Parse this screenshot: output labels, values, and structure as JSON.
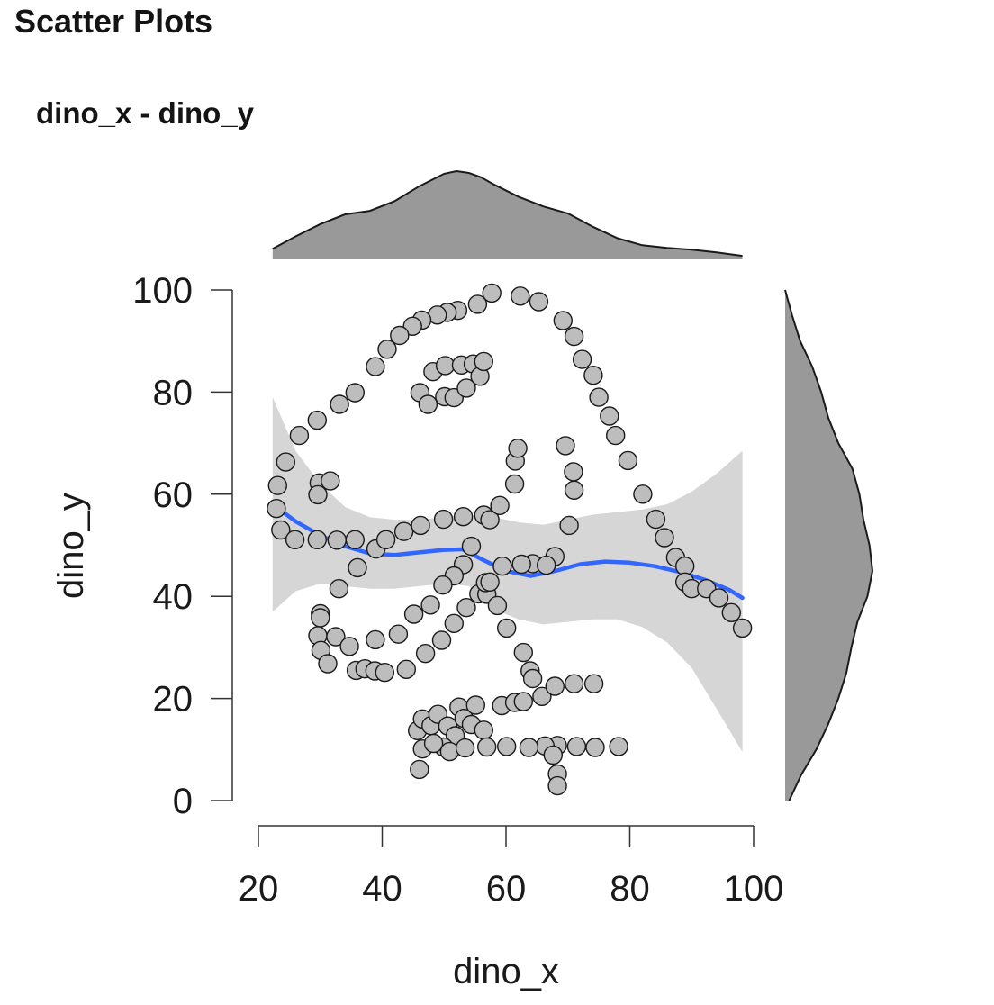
{
  "page": {
    "heading": "Scatter Plots",
    "plot_title": "dino_x - dino_y"
  },
  "chart_data": {
    "type": "scatter",
    "title": "dino_x - dino_y",
    "xlabel": "dino_x",
    "ylabel": "dino_y",
    "xlim": [
      20,
      100
    ],
    "ylim": [
      0,
      100
    ],
    "xticks": [
      "20",
      "40",
      "60",
      "80",
      "100"
    ],
    "yticks": [
      "0",
      "20",
      "40",
      "60",
      "80",
      "100"
    ],
    "grid": false,
    "legend": "none",
    "colors": {
      "point_fill": "#bdbdbd",
      "point_stroke": "#1a1a1a",
      "smooth_line": "#3366ff",
      "confidence_band": "#d6d6d6",
      "density_fill": "#999999",
      "density_stroke": "#1a1a1a"
    },
    "points": [
      [
        55.4,
        97.2
      ],
      [
        57.7,
        99.4
      ],
      [
        62.3,
        98.8
      ],
      [
        65.3,
        97.7
      ],
      [
        69.2,
        94.0
      ],
      [
        71.0,
        90.9
      ],
      [
        72.3,
        86.4
      ],
      [
        74.1,
        83.3
      ],
      [
        75.0,
        79.0
      ],
      [
        76.7,
        75.3
      ],
      [
        77.7,
        71.5
      ],
      [
        79.7,
        66.6
      ],
      [
        82.1,
        60.0
      ],
      [
        84.2,
        55.1
      ],
      [
        85.6,
        51.5
      ],
      [
        87.4,
        47.6
      ],
      [
        88.9,
        45.9
      ],
      [
        88.9,
        42.8
      ],
      [
        90.0,
        41.5
      ],
      [
        92.4,
        41.5
      ],
      [
        94.4,
        39.7
      ],
      [
        96.4,
        36.8
      ],
      [
        98.2,
        33.8
      ],
      [
        52.2,
        96.0
      ],
      [
        50.5,
        95.6
      ],
      [
        48.9,
        95.1
      ],
      [
        46.4,
        94.1
      ],
      [
        44.9,
        92.9
      ],
      [
        42.8,
        91.1
      ],
      [
        40.8,
        88.4
      ],
      [
        38.9,
        85.0
      ],
      [
        35.6,
        79.9
      ],
      [
        33.1,
        77.6
      ],
      [
        29.5,
        74.5
      ],
      [
        26.6,
        71.5
      ],
      [
        24.4,
        66.3
      ],
      [
        23.1,
        61.7
      ],
      [
        22.9,
        57.2
      ],
      [
        23.6,
        53.0
      ],
      [
        25.9,
        51.1
      ],
      [
        29.5,
        51.1
      ],
      [
        32.7,
        51.0
      ],
      [
        35.6,
        51.1
      ],
      [
        39.0,
        49.3
      ],
      [
        40.6,
        51.1
      ],
      [
        43.5,
        52.7
      ],
      [
        46.2,
        53.9
      ],
      [
        49.9,
        55.1
      ],
      [
        53.1,
        55.6
      ],
      [
        56.4,
        55.9
      ],
      [
        57.4,
        55.0
      ],
      [
        59.0,
        57.8
      ],
      [
        61.4,
        62.0
      ],
      [
        61.5,
        66.5
      ],
      [
        61.9,
        69.0
      ],
      [
        69.6,
        69.5
      ],
      [
        70.9,
        64.4
      ],
      [
        71.0,
        60.8
      ],
      [
        70.2,
        53.9
      ],
      [
        46.1,
        79.9
      ],
      [
        47.4,
        77.6
      ],
      [
        48.2,
        84.0
      ],
      [
        50.2,
        85.2
      ],
      [
        50.1,
        79.1
      ],
      [
        51.6,
        78.9
      ],
      [
        52.8,
        85.3
      ],
      [
        53.6,
        80.8
      ],
      [
        54.7,
        85.5
      ],
      [
        55.8,
        83.1
      ],
      [
        56.4,
        86.0
      ],
      [
        29.8,
        62.2
      ],
      [
        31.6,
        62.6
      ],
      [
        29.6,
        59.9
      ],
      [
        36.0,
        45.6
      ],
      [
        33.0,
        41.5
      ],
      [
        30.0,
        36.6
      ],
      [
        30.0,
        35.8
      ],
      [
        29.6,
        32.3
      ],
      [
        30.1,
        29.4
      ],
      [
        31.2,
        26.8
      ],
      [
        32.5,
        32.1
      ],
      [
        34.7,
        30.2
      ],
      [
        35.8,
        25.5
      ],
      [
        37.2,
        25.8
      ],
      [
        38.9,
        31.5
      ],
      [
        38.8,
        25.4
      ],
      [
        40.4,
        25.1
      ],
      [
        43.9,
        25.7
      ],
      [
        42.6,
        32.6
      ],
      [
        45.1,
        36.5
      ],
      [
        47.8,
        38.3
      ],
      [
        47.0,
        28.8
      ],
      [
        49.6,
        31.4
      ],
      [
        51.6,
        34.7
      ],
      [
        53.6,
        37.8
      ],
      [
        55.6,
        40.5
      ],
      [
        56.9,
        40.4
      ],
      [
        56.7,
        42.7
      ],
      [
        58.6,
        38.2
      ],
      [
        60.1,
        33.8
      ],
      [
        62.8,
        29.0
      ],
      [
        63.9,
        25.4
      ],
      [
        64.3,
        23.9
      ],
      [
        64.3,
        46.4
      ],
      [
        67.9,
        47.8
      ],
      [
        66.5,
        46.1
      ],
      [
        62.5,
        46.3
      ],
      [
        59.4,
        45.9
      ],
      [
        57.4,
        42.8
      ],
      [
        53.1,
        46.2
      ],
      [
        51.6,
        44.0
      ],
      [
        49.8,
        42.2
      ],
      [
        54.4,
        49.8
      ],
      [
        45.7,
        13.7
      ],
      [
        46.5,
        16.0
      ],
      [
        47.9,
        14.7
      ],
      [
        49.0,
        16.9
      ],
      [
        50.6,
        14.6
      ],
      [
        51.8,
        12.7
      ],
      [
        52.4,
        18.3
      ],
      [
        53.2,
        16.1
      ],
      [
        54.4,
        14.9
      ],
      [
        55.1,
        18.7
      ],
      [
        56.4,
        13.8
      ],
      [
        49.9,
        10.5
      ],
      [
        50.9,
        9.6
      ],
      [
        46.5,
        10.1
      ],
      [
        48.3,
        11.2
      ],
      [
        53.4,
        10.3
      ],
      [
        56.9,
        10.5
      ],
      [
        59.3,
        18.6
      ],
      [
        61.4,
        19.2
      ],
      [
        62.8,
        19.4
      ],
      [
        65.8,
        20.4
      ],
      [
        67.9,
        22.4
      ],
      [
        71.0,
        22.9
      ],
      [
        74.2,
        22.9
      ],
      [
        74.4,
        10.4
      ],
      [
        71.4,
        10.6
      ],
      [
        68.3,
        10.8
      ],
      [
        66.3,
        10.7
      ],
      [
        63.7,
        10.4
      ],
      [
        60.1,
        10.6
      ],
      [
        67.6,
        8.9
      ],
      [
        68.3,
        5.2
      ],
      [
        68.3,
        2.9
      ],
      [
        78.2,
        10.6
      ],
      [
        46.0,
        6.1
      ]
    ],
    "smooth": [
      [
        22.3,
        58.0
      ],
      [
        26.0,
        54.7
      ],
      [
        30.0,
        51.9
      ],
      [
        34.0,
        49.8
      ],
      [
        38.0,
        48.4
      ],
      [
        42.0,
        48.1
      ],
      [
        46.0,
        48.6
      ],
      [
        50.0,
        49.1
      ],
      [
        53.0,
        49.2
      ],
      [
        56.0,
        47.3
      ],
      [
        60.0,
        45.0
      ],
      [
        64.0,
        44.0
      ],
      [
        68.0,
        45.0
      ],
      [
        72.0,
        46.3
      ],
      [
        76.0,
        46.8
      ],
      [
        80.0,
        46.6
      ],
      [
        84.0,
        45.9
      ],
      [
        88.0,
        44.8
      ],
      [
        92.0,
        43.3
      ],
      [
        96.0,
        41.3
      ],
      [
        98.2,
        39.7
      ]
    ],
    "band_upper": [
      [
        22.3,
        79.0
      ],
      [
        26.0,
        68.5
      ],
      [
        30.0,
        62.0
      ],
      [
        34.0,
        57.5
      ],
      [
        38.0,
        55.5
      ],
      [
        42.0,
        55.0
      ],
      [
        46.0,
        55.0
      ],
      [
        50.0,
        55.5
      ],
      [
        54.0,
        56.0
      ],
      [
        58.0,
        55.5
      ],
      [
        62.0,
        54.5
      ],
      [
        66.0,
        54.0
      ],
      [
        70.0,
        55.0
      ],
      [
        74.0,
        56.0
      ],
      [
        78.0,
        56.5
      ],
      [
        82.0,
        57.0
      ],
      [
        86.0,
        58.0
      ],
      [
        90.0,
        60.5
      ],
      [
        94.0,
        64.0
      ],
      [
        98.2,
        68.5
      ]
    ],
    "band_lower": [
      [
        22.3,
        37.0
      ],
      [
        26.0,
        41.0
      ],
      [
        30.0,
        42.5
      ],
      [
        34.0,
        42.0
      ],
      [
        38.0,
        41.5
      ],
      [
        42.0,
        41.5
      ],
      [
        46.0,
        42.0
      ],
      [
        50.0,
        42.5
      ],
      [
        54.0,
        42.0
      ],
      [
        58.0,
        37.5
      ],
      [
        62.0,
        35.5
      ],
      [
        66.0,
        34.5
      ],
      [
        70.0,
        35.0
      ],
      [
        74.0,
        35.5
      ],
      [
        78.0,
        35.5
      ],
      [
        82.0,
        34.0
      ],
      [
        86.0,
        31.0
      ],
      [
        90.0,
        26.0
      ],
      [
        94.0,
        18.0
      ],
      [
        98.2,
        9.5
      ]
    ],
    "x_density": [
      [
        22.3,
        0.012
      ],
      [
        26.0,
        0.026
      ],
      [
        30.0,
        0.04
      ],
      [
        34.0,
        0.051
      ],
      [
        38.0,
        0.055
      ],
      [
        42.0,
        0.066
      ],
      [
        46.0,
        0.083
      ],
      [
        50.0,
        0.097
      ],
      [
        52.0,
        0.1
      ],
      [
        54.0,
        0.098
      ],
      [
        56.0,
        0.093
      ],
      [
        58.0,
        0.085
      ],
      [
        62.0,
        0.071
      ],
      [
        66.0,
        0.06
      ],
      [
        70.0,
        0.052
      ],
      [
        74.0,
        0.037
      ],
      [
        78.0,
        0.024
      ],
      [
        82.0,
        0.016
      ],
      [
        86.0,
        0.013
      ],
      [
        90.0,
        0.011
      ],
      [
        94.0,
        0.008
      ],
      [
        98.2,
        0.004
      ]
    ],
    "y_density": [
      [
        0.0,
        0.004
      ],
      [
        5.0,
        0.016
      ],
      [
        10.0,
        0.031
      ],
      [
        15.0,
        0.043
      ],
      [
        20.0,
        0.053
      ],
      [
        25.0,
        0.061
      ],
      [
        30.0,
        0.066
      ],
      [
        35.0,
        0.072
      ],
      [
        40.0,
        0.082
      ],
      [
        45.0,
        0.087
      ],
      [
        50.0,
        0.084
      ],
      [
        55.0,
        0.078
      ],
      [
        60.0,
        0.074
      ],
      [
        65.0,
        0.067
      ],
      [
        70.0,
        0.053
      ],
      [
        75.0,
        0.043
      ],
      [
        80.0,
        0.036
      ],
      [
        85.0,
        0.027
      ],
      [
        90.0,
        0.015
      ],
      [
        95.0,
        0.007
      ],
      [
        100.0,
        0.0
      ]
    ]
  }
}
